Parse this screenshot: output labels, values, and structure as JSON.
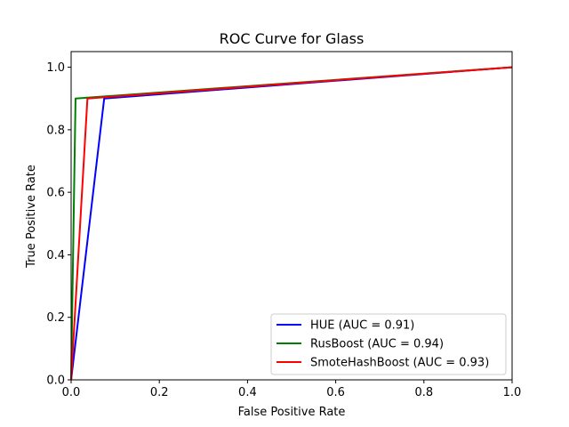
{
  "chart_data": {
    "type": "line",
    "title": "ROC Curve for Glass",
    "xlabel": "False Positive Rate",
    "ylabel": "True Positive Rate",
    "xlim": [
      0.0,
      1.0
    ],
    "ylim": [
      0.0,
      1.05
    ],
    "xticks": [
      "0.0",
      "0.2",
      "0.4",
      "0.6",
      "0.8",
      "1.0"
    ],
    "yticks": [
      "0.0",
      "0.2",
      "0.4",
      "0.6",
      "0.8",
      "1.0"
    ],
    "xtick_values": [
      0.0,
      0.2,
      0.4,
      0.6,
      0.8,
      1.0
    ],
    "ytick_values": [
      0.0,
      0.2,
      0.4,
      0.6,
      0.8,
      1.0
    ],
    "grid": false,
    "legend_position": "lower-right",
    "series": [
      {
        "name": "HUE (AUC = 0.91)",
        "color": "#0000ff",
        "x": [
          0.0,
          0.075,
          1.0
        ],
        "y": [
          0.0,
          0.9,
          1.0
        ]
      },
      {
        "name": "RusBoost (AUC = 0.94)",
        "color": "#008000",
        "x": [
          0.0,
          0.01,
          1.0
        ],
        "y": [
          0.0,
          0.9,
          1.0
        ]
      },
      {
        "name": "SmoteHashBoost (AUC = 0.93)",
        "color": "#ff0000",
        "x": [
          0.0,
          0.037,
          1.0
        ],
        "y": [
          0.0,
          0.9,
          1.0
        ]
      }
    ]
  }
}
